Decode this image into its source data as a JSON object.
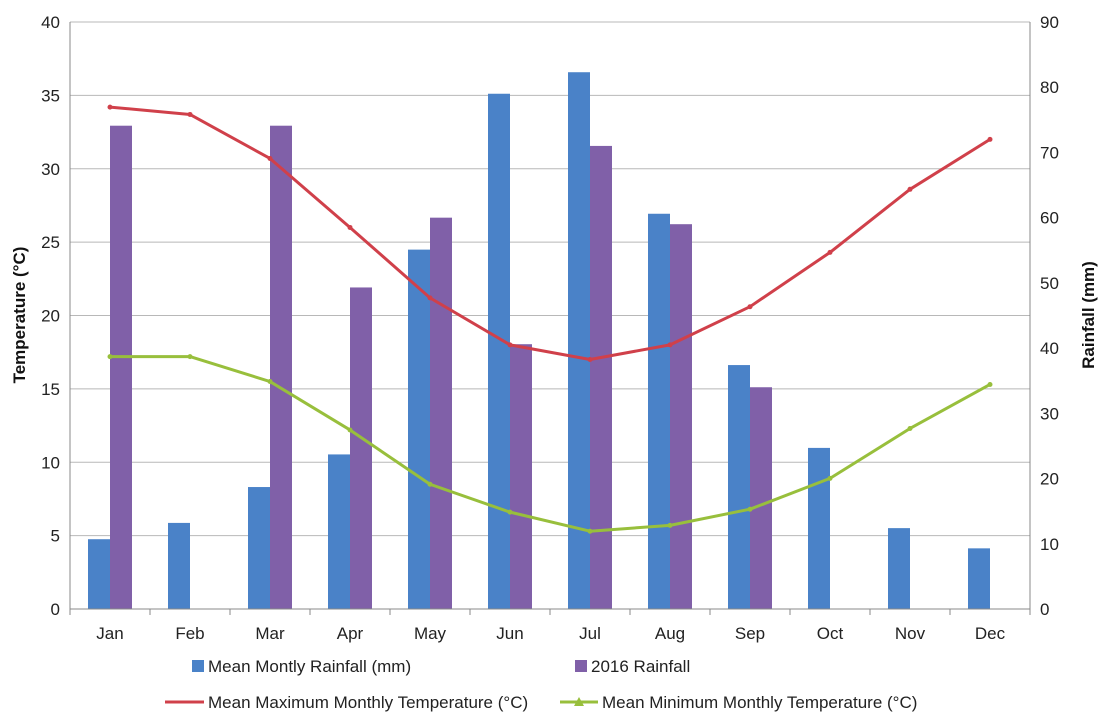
{
  "chart_data": {
    "type": "bar",
    "categories": [
      "Jan",
      "Feb",
      "Mar",
      "Apr",
      "May",
      "Jun",
      "Jul",
      "Aug",
      "Sep",
      "Oct",
      "Nov",
      "Dec"
    ],
    "ylabel": "Temperature (°C)",
    "y2label": "Rainfall (mm)",
    "ylim": [
      0,
      40
    ],
    "y2lim": [
      0,
      90
    ],
    "yticks": [
      "0",
      "5",
      "10",
      "15",
      "20",
      "25",
      "30",
      "35",
      "40"
    ],
    "y2ticks": [
      "0",
      "10",
      "20",
      "30",
      "40",
      "50",
      "60",
      "70",
      "80",
      "90"
    ],
    "grid": true,
    "legend_position": "bottom",
    "bar_series": [
      {
        "name": "Mean Montly Rainfall (mm)",
        "axis": "right",
        "color": "#4a82c8",
        "values": [
          10.7,
          13.2,
          18.7,
          23.7,
          55.1,
          79,
          82.3,
          60.6,
          37.4,
          24.7,
          12.4,
          9.3
        ]
      },
      {
        "name": "2016 Rainfall",
        "axis": "right",
        "color": "#8060a8",
        "values": [
          74.1,
          null,
          74.1,
          49.3,
          60,
          40.6,
          71,
          59,
          34,
          null,
          null,
          null
        ]
      }
    ],
    "line_series": [
      {
        "name": "Mean Maximum Monthly Temperature (°C)",
        "axis": "left",
        "color": "#d0404a",
        "values": [
          34.2,
          33.7,
          30.7,
          26,
          21.2,
          18,
          17,
          18,
          20.6,
          24.3,
          28.6,
          32
        ]
      },
      {
        "name": "Mean Minimum Monthly Temperature  (°C)",
        "axis": "left",
        "color": "#98bf3c",
        "values": [
          17.2,
          17.2,
          15.5,
          12.2,
          8.5,
          6.6,
          5.3,
          5.7,
          6.8,
          8.9,
          12.3,
          15.3
        ]
      }
    ]
  }
}
